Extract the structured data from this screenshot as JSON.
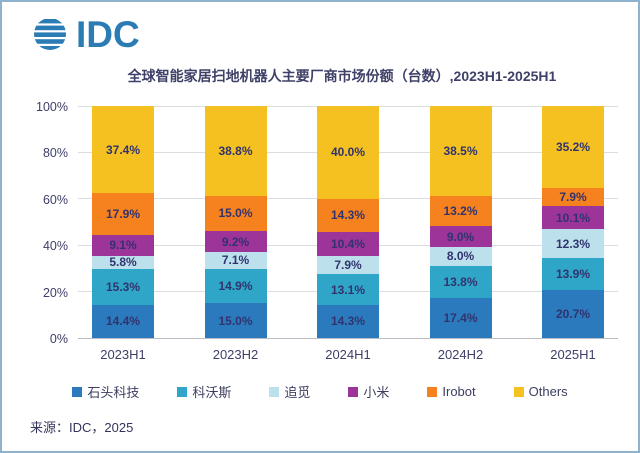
{
  "logo": {
    "text": "IDC",
    "color": "#2b7cb5"
  },
  "title": "全球智能家居扫地机器人主要厂商市场份额（台数）,2023H1-2025H1",
  "source": "来源：IDC，2025",
  "chart_data": {
    "type": "bar",
    "stacked": true,
    "title": "全球智能家居扫地机器人主要厂商市场份额（台数）,2023H1-2025H1",
    "categories": [
      "2023H1",
      "2023H2",
      "2024H1",
      "2024H2",
      "2025H1"
    ],
    "series": [
      {
        "name": "石头科技",
        "color": "#2b7abd",
        "values": [
          14.4,
          15.0,
          14.3,
          17.4,
          20.7
        ]
      },
      {
        "name": "科沃斯",
        "color": "#2fa6c8",
        "values": [
          15.3,
          14.9,
          13.1,
          13.8,
          13.9
        ]
      },
      {
        "name": "追觅",
        "color": "#bce1ed",
        "values": [
          5.8,
          7.1,
          7.9,
          8.0,
          12.3
        ]
      },
      {
        "name": "小米",
        "color": "#9d3499",
        "values": [
          9.1,
          9.2,
          10.4,
          9.0,
          10.1
        ]
      },
      {
        "name": "Irobot",
        "color": "#f6821f",
        "values": [
          17.9,
          15.0,
          14.3,
          13.2,
          7.9
        ]
      },
      {
        "name": "Others",
        "color": "#f4c120",
        "values": [
          37.4,
          38.8,
          40.0,
          38.5,
          35.2
        ]
      }
    ],
    "value_suffix": "%",
    "ylim": [
      0,
      100
    ],
    "yticks": [
      "0%",
      "20%",
      "40%",
      "60%",
      "80%",
      "100%"
    ],
    "grid": true,
    "legend_position": "bottom",
    "value_label_color": "#31336e"
  }
}
